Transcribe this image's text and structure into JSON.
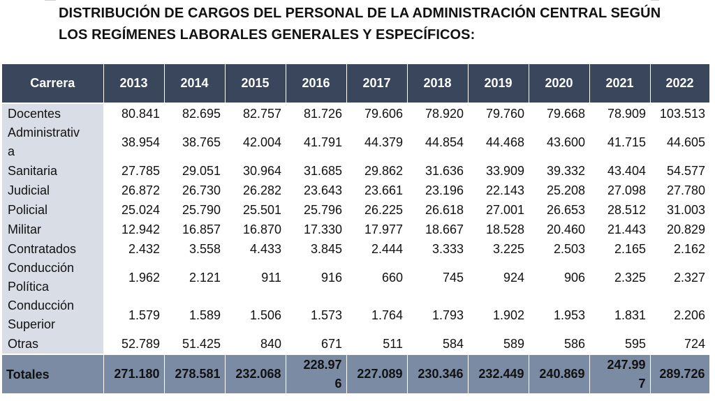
{
  "title": {
    "line1": "DISTRIBUCIÓN DE CARGOS DEL PERSONAL DE LA ADMINISTRACIÓN CENTRAL SEGÚN",
    "line2": "LOS REGÍMENES LABORALES GENERALES Y ESPECÍFICOS:"
  },
  "table": {
    "headers": [
      "Carrera",
      "2013",
      "2014",
      "2015",
      "2016",
      "2017",
      "2018",
      "2019",
      "2020",
      "2021",
      "2022"
    ],
    "rows": [
      {
        "label": "Docentes",
        "values": [
          "80.841",
          "82.695",
          "82.757",
          "81.726",
          "79.606",
          "78.920",
          "79.760",
          "79.668",
          "78.909",
          "103.513"
        ]
      },
      {
        "label": "Administrativa",
        "label_lines": [
          "Administrativ",
          "a"
        ],
        "values": [
          "38.954",
          "38.765",
          "42.004",
          "41.791",
          "44.379",
          "44.854",
          "44.468",
          "43.600",
          "41.715",
          "44.605"
        ]
      },
      {
        "label": "Sanitaria",
        "values": [
          "27.785",
          "29.051",
          "30.964",
          "31.685",
          "29.862",
          "31.636",
          "33.909",
          "39.332",
          "43.404",
          "54.577"
        ]
      },
      {
        "label": "Judicial",
        "values": [
          "26.872",
          "26.730",
          "26.282",
          "23.643",
          "23.661",
          "23.196",
          "22.143",
          "25.208",
          "27.098",
          "27.780"
        ]
      },
      {
        "label": "Policial",
        "values": [
          "25.024",
          "25.790",
          "25.501",
          "25.796",
          "26.225",
          "26.618",
          "27.001",
          "26.653",
          "28.512",
          "31.003"
        ]
      },
      {
        "label": "Militar",
        "values": [
          "12.942",
          "16.857",
          "16.870",
          "17.330",
          "17.977",
          "18.667",
          "18.528",
          "20.460",
          "21.443",
          "20.829"
        ]
      },
      {
        "label": "Contratados",
        "values": [
          "2.432",
          "3.558",
          "4.433",
          "3.845",
          "2.444",
          "3.333",
          "3.225",
          "2.503",
          "2.165",
          "2.162"
        ]
      },
      {
        "label": "Conducción Política",
        "label_lines": [
          "Conducción",
          "Política"
        ],
        "values": [
          "1.962",
          "2.121",
          "911",
          "916",
          "660",
          "745",
          "924",
          "906",
          "2.325",
          "2.327"
        ]
      },
      {
        "label": "Conducción Superior",
        "label_lines": [
          "Conducción",
          "Superior"
        ],
        "values": [
          "1.579",
          "1.589",
          "1.506",
          "1.573",
          "1.764",
          "1.793",
          "1.902",
          "1.953",
          "1.831",
          "2.206"
        ]
      },
      {
        "label": "Otras",
        "values": [
          "52.789",
          "51.425",
          "840",
          "671",
          "511",
          "584",
          "589",
          "586",
          "595",
          "724"
        ]
      }
    ],
    "totals": {
      "label": "Totales",
      "values": [
        "271.180",
        "278.581",
        "232.068",
        "228.976",
        "227.089",
        "230.346",
        "232.449",
        "240.869",
        "247.997",
        "289.726"
      ],
      "wrapped": {
        "2016": [
          "228.97",
          "6"
        ],
        "2021": [
          "247.99",
          "7"
        ]
      }
    }
  },
  "colors": {
    "header_bg": "#3a465b",
    "label_col_bg": "#d9dde6",
    "totals_bg": "#7b8ba3"
  }
}
